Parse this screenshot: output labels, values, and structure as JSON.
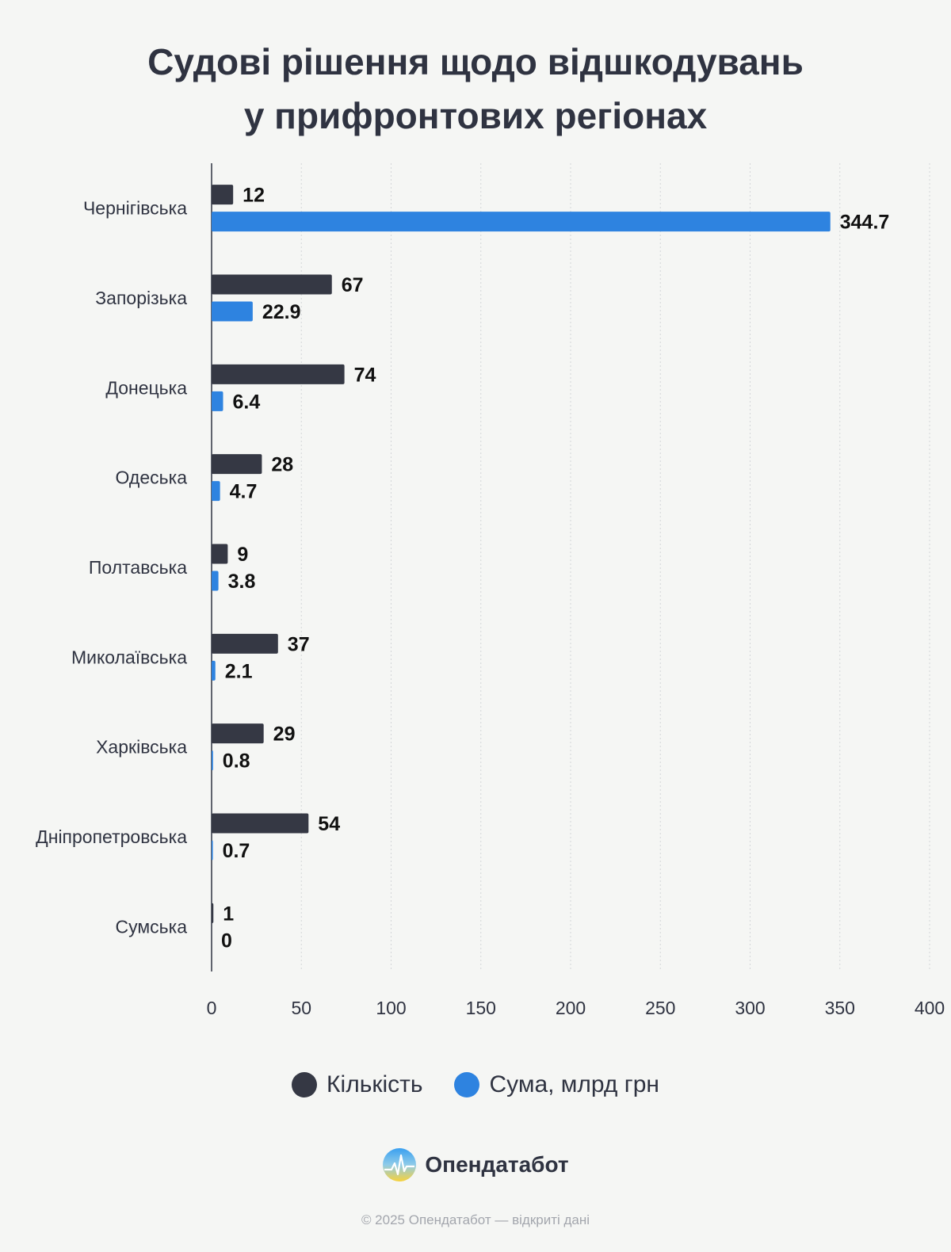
{
  "title_lines": [
    "Судові рішення щодо відшкодувань",
    "у прифронтових регіонах"
  ],
  "chart_data": {
    "type": "bar",
    "orientation": "horizontal",
    "categories": [
      "Чернігівська",
      "Запорізька",
      "Донецька",
      "Одеська",
      "Полтавська",
      "Миколаївська",
      "Харківська",
      "Дніпропетровська",
      "Сумська"
    ],
    "series": [
      {
        "name": "Кількість",
        "color": "#353844",
        "values": [
          12,
          67,
          74,
          28,
          9,
          37,
          29,
          54,
          1
        ],
        "labels": [
          "12",
          "67",
          "74",
          "28",
          "9",
          "37",
          "29",
          "54",
          "1"
        ]
      },
      {
        "name": "Сума, млрд грн",
        "color": "#2e83e0",
        "values": [
          344.7,
          22.9,
          6.4,
          4.7,
          3.8,
          2.1,
          0.8,
          0.7,
          0
        ],
        "labels": [
          "344.7",
          "22.9",
          "6.4",
          "4.7",
          "3.8",
          "2.1",
          "0.8",
          "0.7",
          "0"
        ]
      }
    ],
    "xlim": [
      0,
      400
    ],
    "xticks": [
      "0",
      "50",
      "100",
      "150",
      "200",
      "250",
      "300",
      "350",
      "400"
    ],
    "grid": "vertical dotted",
    "legend_position": "bottom"
  },
  "brand": {
    "name": "Опендатабот",
    "icon": "opendatabot-logo-icon"
  },
  "footer": "© 2025 Опендатабот — відкриті дані"
}
